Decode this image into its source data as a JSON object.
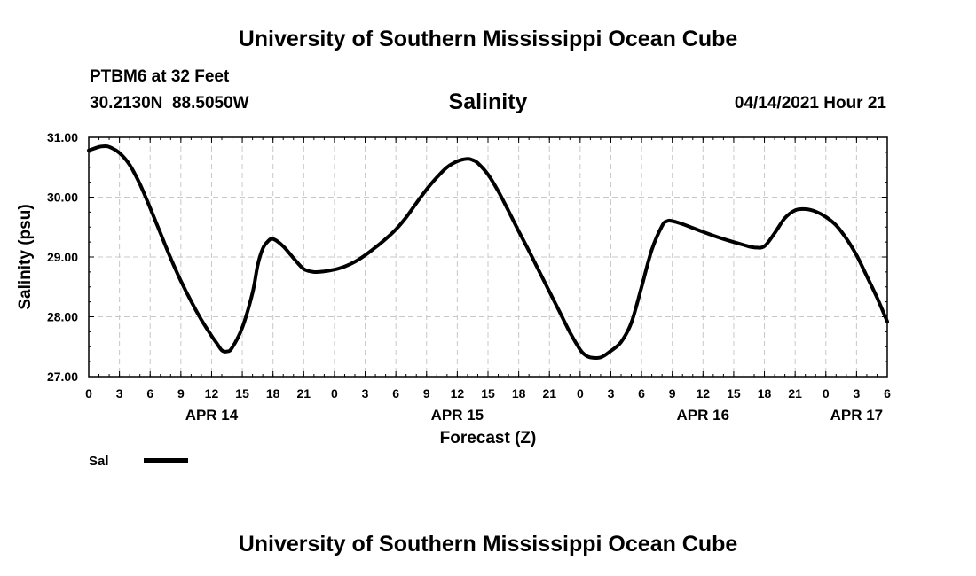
{
  "header": {
    "title": "University of Southern Mississippi Ocean Cube",
    "station": "PTBM6 at 32 Feet",
    "coords": "30.2130N  88.5050W",
    "date": "04/14/2021 Hour 21"
  },
  "footer": {
    "title": "University of Southern Mississippi Ocean Cube"
  },
  "chart_data": {
    "type": "line",
    "title": "Salinity",
    "xlabel": "Forecast (Z)",
    "ylabel": "Salinity (psu)",
    "ylim": [
      27.0,
      31.0
    ],
    "xlim_hours": [
      0,
      78
    ],
    "grid": true,
    "y_ticks": [
      {
        "value": 27.0,
        "label": "27.00"
      },
      {
        "value": 28.0,
        "label": "28.00"
      },
      {
        "value": 29.0,
        "label": "29.00"
      },
      {
        "value": 30.0,
        "label": "30.00"
      },
      {
        "value": 31.0,
        "label": "31.00"
      }
    ],
    "x_ticks": [
      {
        "hour": 0,
        "label": "0"
      },
      {
        "hour": 3,
        "label": "3"
      },
      {
        "hour": 6,
        "label": "6"
      },
      {
        "hour": 9,
        "label": "9"
      },
      {
        "hour": 12,
        "label": "12"
      },
      {
        "hour": 15,
        "label": "15"
      },
      {
        "hour": 18,
        "label": "18"
      },
      {
        "hour": 21,
        "label": "21"
      },
      {
        "hour": 24,
        "label": "0"
      },
      {
        "hour": 27,
        "label": "3"
      },
      {
        "hour": 30,
        "label": "6"
      },
      {
        "hour": 33,
        "label": "9"
      },
      {
        "hour": 36,
        "label": "12"
      },
      {
        "hour": 39,
        "label": "15"
      },
      {
        "hour": 42,
        "label": "18"
      },
      {
        "hour": 45,
        "label": "21"
      },
      {
        "hour": 48,
        "label": "0"
      },
      {
        "hour": 51,
        "label": "3"
      },
      {
        "hour": 54,
        "label": "6"
      },
      {
        "hour": 57,
        "label": "9"
      },
      {
        "hour": 60,
        "label": "12"
      },
      {
        "hour": 63,
        "label": "15"
      },
      {
        "hour": 66,
        "label": "18"
      },
      {
        "hour": 69,
        "label": "21"
      },
      {
        "hour": 72,
        "label": "0"
      },
      {
        "hour": 75,
        "label": "3"
      },
      {
        "hour": 78,
        "label": "6"
      }
    ],
    "date_labels": [
      {
        "hour": 12,
        "label": "APR 14"
      },
      {
        "hour": 36,
        "label": "APR 15"
      },
      {
        "hour": 60,
        "label": "APR 16"
      },
      {
        "hour": 75,
        "label": "APR 17"
      }
    ],
    "legend": [
      {
        "name": "Sal"
      }
    ],
    "series": [
      {
        "name": "Sal",
        "x": [
          0,
          1,
          1.5,
          2,
          3,
          4,
          5,
          6,
          7,
          8,
          9,
          10,
          11,
          12,
          12.5,
          13,
          13.5,
          14,
          15,
          16,
          16.5,
          17,
          17.5,
          18,
          19,
          20,
          21,
          22,
          23,
          24,
          25,
          26,
          27,
          28,
          29,
          30,
          31,
          32,
          33,
          34,
          35,
          36,
          37,
          37.5,
          38,
          39,
          40,
          41,
          42,
          43,
          44,
          45,
          46,
          47,
          48,
          48.5,
          49,
          50,
          51,
          52,
          53,
          54,
          55,
          56,
          56.5,
          57,
          58,
          60,
          62,
          64,
          65,
          66,
          67,
          68,
          69,
          70,
          71,
          72,
          73,
          74,
          75,
          76,
          77,
          78
        ],
        "values": [
          30.78,
          30.84,
          30.85,
          30.84,
          30.74,
          30.54,
          30.22,
          29.82,
          29.4,
          28.98,
          28.6,
          28.26,
          27.95,
          27.68,
          27.56,
          27.44,
          27.42,
          27.48,
          27.82,
          28.4,
          28.86,
          29.14,
          29.26,
          29.3,
          29.18,
          28.98,
          28.8,
          28.75,
          28.76,
          28.79,
          28.84,
          28.92,
          29.03,
          29.16,
          29.3,
          29.46,
          29.66,
          29.9,
          30.13,
          30.33,
          30.5,
          30.6,
          30.64,
          30.62,
          30.57,
          30.38,
          30.1,
          29.77,
          29.43,
          29.1,
          28.76,
          28.42,
          28.08,
          27.74,
          27.45,
          27.36,
          27.32,
          27.32,
          27.43,
          27.58,
          27.9,
          28.5,
          29.12,
          29.52,
          29.6,
          29.6,
          29.55,
          29.42,
          29.3,
          29.2,
          29.16,
          29.18,
          29.4,
          29.65,
          29.78,
          29.8,
          29.76,
          29.67,
          29.53,
          29.31,
          29.03,
          28.68,
          28.32,
          27.92
        ]
      }
    ]
  }
}
